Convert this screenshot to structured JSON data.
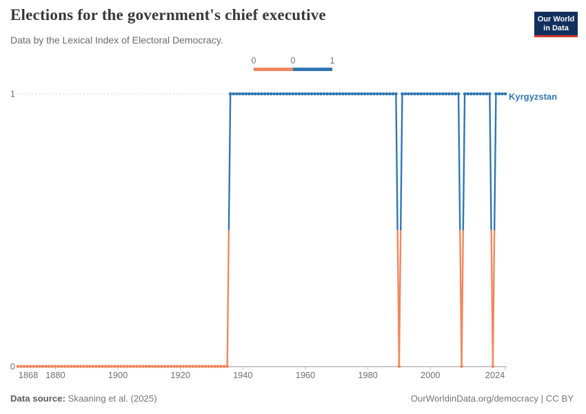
{
  "header": {
    "title": "Elections for the government's chief executive",
    "subtitle": "Data by the Lexical Index of Electoral Democracy."
  },
  "logo": {
    "line1": "Our World",
    "line2": "in Data"
  },
  "colors": {
    "value_0": "#F0875F",
    "value_1": "#3076B1",
    "logo_bg": "#12305C",
    "logo_accent": "#D4392F",
    "gridline": "#CFCFCF",
    "axis_line": "#9E9E9E",
    "axis_text": "#6F6F6F"
  },
  "legend": {
    "tick_labels": [
      "0",
      "0",
      "1"
    ],
    "segments": [
      {
        "color": "#F0875F"
      },
      {
        "color": "#3076B1"
      }
    ]
  },
  "chart_data": {
    "type": "line",
    "title": "Elections for the government's chief executive",
    "entity_label": "Kyrgyzstan",
    "x_range": [
      1868,
      2024
    ],
    "y_range": [
      0,
      1
    ],
    "x_tick_labels": [
      "1868",
      "1880",
      "1900",
      "1920",
      "1940",
      "1960",
      "1980",
      "2000",
      "2024"
    ],
    "x_tick_years": [
      1868,
      1880,
      1900,
      1920,
      1940,
      1960,
      1980,
      2000,
      2024
    ],
    "y_tick_labels": [
      "0",
      "1"
    ],
    "grid": "dashed line at y=1, solid axis at y=0",
    "legend_position": "top-center",
    "value_colors": {
      "0": "#F0875F",
      "1": "#3076B1"
    },
    "markers": "circle at every year",
    "series": [
      {
        "name": "Kyrgyzstan",
        "segments": [
          {
            "from": 1868,
            "to": 1935,
            "value": 0
          },
          {
            "from": 1936,
            "to": 1989,
            "value": 1
          },
          {
            "from": 1990,
            "to": 1990,
            "value": 0
          },
          {
            "from": 1991,
            "to": 2009,
            "value": 1
          },
          {
            "from": 2010,
            "to": 2010,
            "value": 0
          },
          {
            "from": 2011,
            "to": 2019,
            "value": 1
          },
          {
            "from": 2020,
            "to": 2020,
            "value": 0
          },
          {
            "from": 2021,
            "to": 2024,
            "value": 1
          }
        ]
      }
    ]
  },
  "footer": {
    "source_label": "Data source:",
    "source_value": "Skaaning et al. (2025)",
    "attribution": "OurWorldinData.org/democracy | CC BY"
  }
}
